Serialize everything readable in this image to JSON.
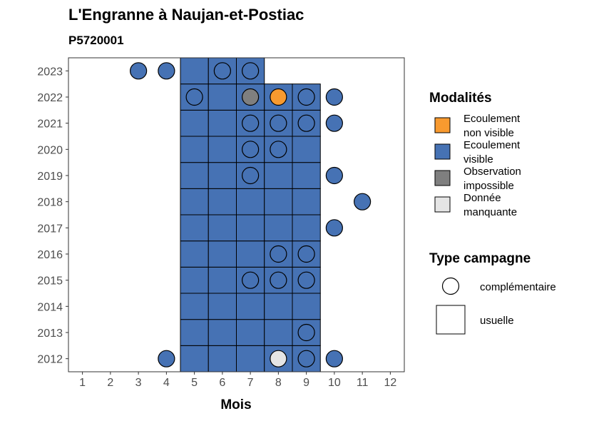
{
  "chart_data": {
    "type": "heatmap",
    "title": "L'Engranne à Naujan-et-Postiac",
    "subtitle": "P5720001",
    "xlabel": "Mois",
    "ylabel": "",
    "x_ticks": [
      1,
      2,
      3,
      4,
      5,
      6,
      7,
      8,
      9,
      10,
      11,
      12
    ],
    "y_ticks": [
      2012,
      2013,
      2014,
      2015,
      2016,
      2017,
      2018,
      2019,
      2020,
      2021,
      2022,
      2023
    ],
    "xlim": [
      0.5,
      12.5
    ],
    "ylim": [
      2011.5,
      2023.5
    ],
    "legend": {
      "position": "right",
      "modalites": {
        "title": "Modalités",
        "items": [
          {
            "key": "ecoulement_non_visible",
            "line1": "Ecoulement",
            "line2": "non visible",
            "color": "#f89a2f"
          },
          {
            "key": "ecoulement_visible",
            "line1": "Ecoulement",
            "line2": "visible",
            "color": "#4672b4"
          },
          {
            "key": "observation_impossible",
            "line1": "Observation",
            "line2": "impossible",
            "color": "#7f7f7f"
          },
          {
            "key": "donnee_manquante",
            "line1": "Donnée",
            "line2": "manquante",
            "color": "#e5e5e5"
          }
        ]
      },
      "type_campagne": {
        "title": "Type campagne",
        "items": [
          {
            "key": "complementaire",
            "label": "complémentaire",
            "shape": "circle"
          },
          {
            "key": "usuelle",
            "label": "usuelle",
            "shape": "square"
          }
        ]
      }
    },
    "points": [
      {
        "year": 2012,
        "month": 4,
        "type": "complementaire",
        "modalite": "ecoulement_visible"
      },
      {
        "year": 2012,
        "month": 5,
        "type": "usuelle",
        "modalite": "ecoulement_visible"
      },
      {
        "year": 2012,
        "month": 6,
        "type": "usuelle",
        "modalite": "ecoulement_visible"
      },
      {
        "year": 2012,
        "month": 7,
        "type": "usuelle",
        "modalite": "ecoulement_visible"
      },
      {
        "year": 2012,
        "month": 8,
        "type": "usuelle",
        "modalite": "ecoulement_visible"
      },
      {
        "year": 2012,
        "month": 8,
        "type": "complementaire",
        "modalite": "donnee_manquante"
      },
      {
        "year": 2012,
        "month": 9,
        "type": "usuelle",
        "modalite": "ecoulement_visible"
      },
      {
        "year": 2012,
        "month": 9,
        "type": "complementaire",
        "modalite": "ecoulement_visible"
      },
      {
        "year": 2012,
        "month": 10,
        "type": "complementaire",
        "modalite": "ecoulement_visible"
      },
      {
        "year": 2013,
        "month": 5,
        "type": "usuelle",
        "modalite": "ecoulement_visible"
      },
      {
        "year": 2013,
        "month": 6,
        "type": "usuelle",
        "modalite": "ecoulement_visible"
      },
      {
        "year": 2013,
        "month": 7,
        "type": "usuelle",
        "modalite": "ecoulement_visible"
      },
      {
        "year": 2013,
        "month": 8,
        "type": "usuelle",
        "modalite": "ecoulement_visible"
      },
      {
        "year": 2013,
        "month": 9,
        "type": "usuelle",
        "modalite": "ecoulement_visible"
      },
      {
        "year": 2013,
        "month": 9,
        "type": "complementaire",
        "modalite": "ecoulement_visible"
      },
      {
        "year": 2014,
        "month": 5,
        "type": "usuelle",
        "modalite": "ecoulement_visible"
      },
      {
        "year": 2014,
        "month": 6,
        "type": "usuelle",
        "modalite": "ecoulement_visible"
      },
      {
        "year": 2014,
        "month": 7,
        "type": "usuelle",
        "modalite": "ecoulement_visible"
      },
      {
        "year": 2014,
        "month": 8,
        "type": "usuelle",
        "modalite": "ecoulement_visible"
      },
      {
        "year": 2014,
        "month": 9,
        "type": "usuelle",
        "modalite": "ecoulement_visible"
      },
      {
        "year": 2015,
        "month": 5,
        "type": "usuelle",
        "modalite": "ecoulement_visible"
      },
      {
        "year": 2015,
        "month": 6,
        "type": "usuelle",
        "modalite": "ecoulement_visible"
      },
      {
        "year": 2015,
        "month": 7,
        "type": "usuelle",
        "modalite": "ecoulement_visible"
      },
      {
        "year": 2015,
        "month": 7,
        "type": "complementaire",
        "modalite": "ecoulement_visible"
      },
      {
        "year": 2015,
        "month": 8,
        "type": "usuelle",
        "modalite": "ecoulement_visible"
      },
      {
        "year": 2015,
        "month": 8,
        "type": "complementaire",
        "modalite": "ecoulement_visible"
      },
      {
        "year": 2015,
        "month": 9,
        "type": "usuelle",
        "modalite": "ecoulement_visible"
      },
      {
        "year": 2015,
        "month": 9,
        "type": "complementaire",
        "modalite": "ecoulement_visible"
      },
      {
        "year": 2016,
        "month": 5,
        "type": "usuelle",
        "modalite": "ecoulement_visible"
      },
      {
        "year": 2016,
        "month": 6,
        "type": "usuelle",
        "modalite": "ecoulement_visible"
      },
      {
        "year": 2016,
        "month": 7,
        "type": "usuelle",
        "modalite": "ecoulement_visible"
      },
      {
        "year": 2016,
        "month": 8,
        "type": "usuelle",
        "modalite": "ecoulement_visible"
      },
      {
        "year": 2016,
        "month": 8,
        "type": "complementaire",
        "modalite": "ecoulement_visible"
      },
      {
        "year": 2016,
        "month": 9,
        "type": "usuelle",
        "modalite": "ecoulement_visible"
      },
      {
        "year": 2016,
        "month": 9,
        "type": "complementaire",
        "modalite": "ecoulement_visible"
      },
      {
        "year": 2017,
        "month": 5,
        "type": "usuelle",
        "modalite": "ecoulement_visible"
      },
      {
        "year": 2017,
        "month": 6,
        "type": "usuelle",
        "modalite": "ecoulement_visible"
      },
      {
        "year": 2017,
        "month": 7,
        "type": "usuelle",
        "modalite": "ecoulement_visible"
      },
      {
        "year": 2017,
        "month": 8,
        "type": "usuelle",
        "modalite": "ecoulement_visible"
      },
      {
        "year": 2017,
        "month": 9,
        "type": "usuelle",
        "modalite": "ecoulement_visible"
      },
      {
        "year": 2017,
        "month": 10,
        "type": "complementaire",
        "modalite": "ecoulement_visible"
      },
      {
        "year": 2018,
        "month": 5,
        "type": "usuelle",
        "modalite": "ecoulement_visible"
      },
      {
        "year": 2018,
        "month": 6,
        "type": "usuelle",
        "modalite": "ecoulement_visible"
      },
      {
        "year": 2018,
        "month": 7,
        "type": "usuelle",
        "modalite": "ecoulement_visible"
      },
      {
        "year": 2018,
        "month": 8,
        "type": "usuelle",
        "modalite": "ecoulement_visible"
      },
      {
        "year": 2018,
        "month": 9,
        "type": "usuelle",
        "modalite": "ecoulement_visible"
      },
      {
        "year": 2018,
        "month": 11,
        "type": "complementaire",
        "modalite": "ecoulement_visible"
      },
      {
        "year": 2019,
        "month": 5,
        "type": "usuelle",
        "modalite": "ecoulement_visible"
      },
      {
        "year": 2019,
        "month": 6,
        "type": "usuelle",
        "modalite": "ecoulement_visible"
      },
      {
        "year": 2019,
        "month": 7,
        "type": "usuelle",
        "modalite": "ecoulement_visible"
      },
      {
        "year": 2019,
        "month": 7,
        "type": "complementaire",
        "modalite": "ecoulement_visible"
      },
      {
        "year": 2019,
        "month": 8,
        "type": "usuelle",
        "modalite": "ecoulement_visible"
      },
      {
        "year": 2019,
        "month": 9,
        "type": "usuelle",
        "modalite": "ecoulement_visible"
      },
      {
        "year": 2019,
        "month": 10,
        "type": "complementaire",
        "modalite": "ecoulement_visible"
      },
      {
        "year": 2020,
        "month": 5,
        "type": "usuelle",
        "modalite": "ecoulement_visible"
      },
      {
        "year": 2020,
        "month": 6,
        "type": "usuelle",
        "modalite": "ecoulement_visible"
      },
      {
        "year": 2020,
        "month": 7,
        "type": "usuelle",
        "modalite": "ecoulement_visible"
      },
      {
        "year": 2020,
        "month": 7,
        "type": "complementaire",
        "modalite": "ecoulement_visible"
      },
      {
        "year": 2020,
        "month": 8,
        "type": "usuelle",
        "modalite": "ecoulement_visible"
      },
      {
        "year": 2020,
        "month": 8,
        "type": "complementaire",
        "modalite": "ecoulement_visible"
      },
      {
        "year": 2020,
        "month": 9,
        "type": "usuelle",
        "modalite": "ecoulement_visible"
      },
      {
        "year": 2021,
        "month": 5,
        "type": "usuelle",
        "modalite": "ecoulement_visible"
      },
      {
        "year": 2021,
        "month": 6,
        "type": "usuelle",
        "modalite": "ecoulement_visible"
      },
      {
        "year": 2021,
        "month": 7,
        "type": "usuelle",
        "modalite": "ecoulement_visible"
      },
      {
        "year": 2021,
        "month": 7,
        "type": "complementaire",
        "modalite": "ecoulement_visible"
      },
      {
        "year": 2021,
        "month": 8,
        "type": "usuelle",
        "modalite": "ecoulement_visible"
      },
      {
        "year": 2021,
        "month": 8,
        "type": "complementaire",
        "modalite": "ecoulement_visible"
      },
      {
        "year": 2021,
        "month": 9,
        "type": "usuelle",
        "modalite": "ecoulement_visible"
      },
      {
        "year": 2021,
        "month": 9,
        "type": "complementaire",
        "modalite": "ecoulement_visible"
      },
      {
        "year": 2021,
        "month": 10,
        "type": "complementaire",
        "modalite": "ecoulement_visible"
      },
      {
        "year": 2022,
        "month": 5,
        "type": "usuelle",
        "modalite": "ecoulement_visible"
      },
      {
        "year": 2022,
        "month": 5,
        "type": "complementaire",
        "modalite": "ecoulement_visible"
      },
      {
        "year": 2022,
        "month": 6,
        "type": "usuelle",
        "modalite": "ecoulement_visible"
      },
      {
        "year": 2022,
        "month": 7,
        "type": "usuelle",
        "modalite": "ecoulement_visible"
      },
      {
        "year": 2022,
        "month": 7,
        "type": "complementaire",
        "modalite": "observation_impossible"
      },
      {
        "year": 2022,
        "month": 8,
        "type": "usuelle",
        "modalite": "ecoulement_visible"
      },
      {
        "year": 2022,
        "month": 8,
        "type": "complementaire",
        "modalite": "ecoulement_non_visible"
      },
      {
        "year": 2022,
        "month": 9,
        "type": "usuelle",
        "modalite": "ecoulement_visible"
      },
      {
        "year": 2022,
        "month": 9,
        "type": "complementaire",
        "modalite": "ecoulement_visible"
      },
      {
        "year": 2022,
        "month": 10,
        "type": "complementaire",
        "modalite": "ecoulement_visible"
      },
      {
        "year": 2023,
        "month": 3,
        "type": "complementaire",
        "modalite": "ecoulement_visible"
      },
      {
        "year": 2023,
        "month": 4,
        "type": "complementaire",
        "modalite": "ecoulement_visible"
      },
      {
        "year": 2023,
        "month": 5,
        "type": "usuelle",
        "modalite": "ecoulement_visible"
      },
      {
        "year": 2023,
        "month": 6,
        "type": "usuelle",
        "modalite": "ecoulement_visible"
      },
      {
        "year": 2023,
        "month": 6,
        "type": "complementaire",
        "modalite": "ecoulement_visible"
      },
      {
        "year": 2023,
        "month": 7,
        "type": "usuelle",
        "modalite": "ecoulement_visible"
      },
      {
        "year": 2023,
        "month": 7,
        "type": "complementaire",
        "modalite": "ecoulement_visible"
      }
    ]
  }
}
